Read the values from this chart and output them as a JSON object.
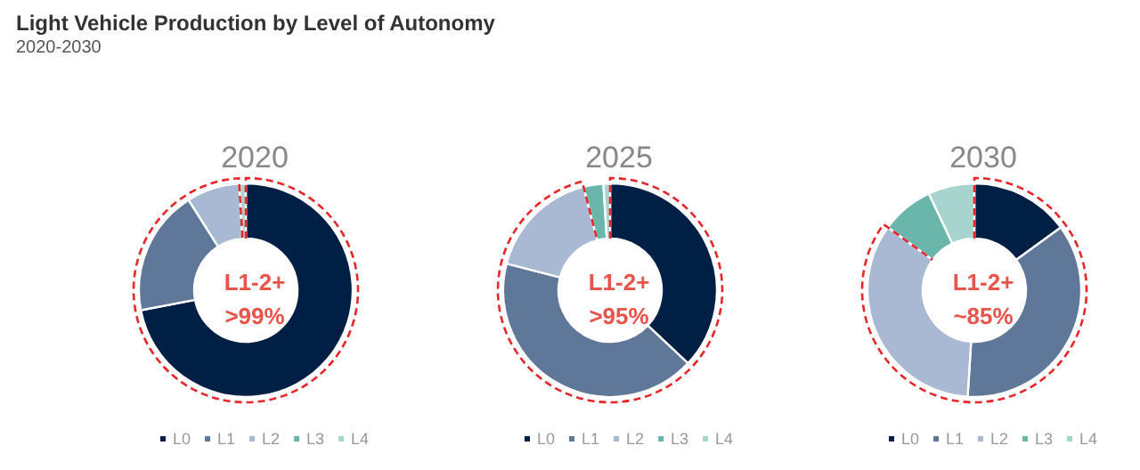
{
  "chart_data": {
    "type": "donut",
    "title": "Light Vehicle Production by Level of Autonomy",
    "subtitle": "2020-2030",
    "categories": [
      "L0",
      "L1",
      "L2",
      "L3",
      "L4"
    ],
    "colors": [
      "#001f45",
      "#5f7899",
      "#a9b8d3",
      "#6bb6aa",
      "#a6d5cf"
    ],
    "series": [
      {
        "name": "2020",
        "values": [
          72,
          19,
          8,
          null,
          1
        ]
      },
      {
        "name": "2025",
        "values": [
          37,
          42,
          17,
          3,
          1
        ]
      },
      {
        "name": "2030",
        "values": [
          15,
          36,
          34,
          8,
          7
        ]
      }
    ],
    "annotations": [
      "L1-2+",
      ">99%",
      "L1-2+",
      ">95%",
      "L1-2+",
      "~85%"
    ],
    "legend": "bottom"
  }
}
